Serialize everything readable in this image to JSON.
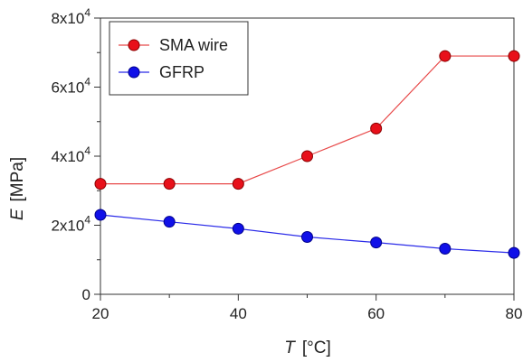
{
  "chart_data": {
    "type": "line",
    "x": [
      20,
      30,
      40,
      50,
      60,
      70,
      80
    ],
    "xlim": [
      20,
      80
    ],
    "ylim": [
      0,
      80000
    ],
    "x_ticks": [
      20,
      40,
      60,
      80
    ],
    "x_tick_labels": [
      "20",
      "40",
      "60",
      "80"
    ],
    "y_ticks": [
      0,
      20000,
      40000,
      60000,
      80000
    ],
    "y_tick_labels": [
      {
        "base": "0",
        "exp": ""
      },
      {
        "base": "2x10",
        "exp": "4"
      },
      {
        "base": "4x10",
        "exp": "4"
      },
      {
        "base": "6x10",
        "exp": "4"
      },
      {
        "base": "8x10",
        "exp": "4"
      }
    ],
    "xlabel": {
      "symbol": "T",
      "unit": "[°C]"
    },
    "ylabel": {
      "symbol": "E",
      "unit": "[MPa]"
    },
    "legend_position": "top-left",
    "grid": false,
    "series": [
      {
        "name": "SMA wire",
        "color": "#e8101a",
        "line_color": "#e84a4a",
        "values": [
          32000,
          32000,
          32000,
          40000,
          48000,
          69000,
          69000
        ]
      },
      {
        "name": "GFRP",
        "color": "#1010e8",
        "line_color": "#2a2ae8",
        "values": [
          23000,
          21000,
          19000,
          16600,
          15000,
          13200,
          12000
        ]
      }
    ]
  }
}
